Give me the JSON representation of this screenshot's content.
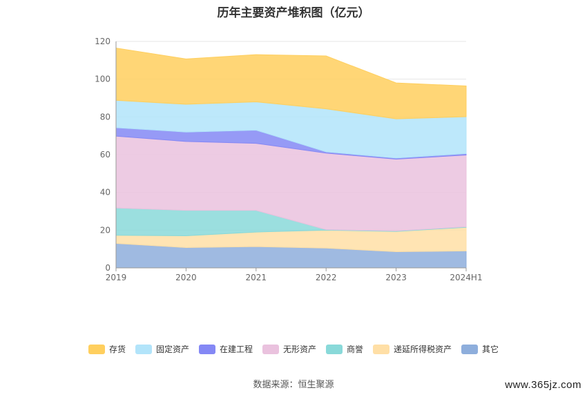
{
  "title": "历年主要资产堆积图（亿元）",
  "source": "数据来源：恒生聚源",
  "watermark": "www.365jz.com",
  "chart_data": {
    "type": "area",
    "stacked": true,
    "categories": [
      "2019",
      "2020",
      "2021",
      "2022",
      "2023",
      "2024H1"
    ],
    "ylim": [
      0,
      120
    ],
    "yticks": [
      0,
      20,
      40,
      60,
      80,
      100,
      120
    ],
    "grid": true,
    "legend_position": "bottom",
    "series": [
      {
        "name": "其它",
        "color": "#8eaedc",
        "values": [
          13.0,
          10.8,
          11.3,
          10.5,
          8.6,
          9.0
        ]
      },
      {
        "name": "递延所得税资产",
        "color": "#ffdfa6",
        "values": [
          4.3,
          6.2,
          7.7,
          9.5,
          10.7,
          12.5
        ]
      },
      {
        "name": "商誉",
        "color": "#89d9d9",
        "values": [
          14.5,
          13.5,
          11.5,
          0.3,
          0.3,
          0.3
        ]
      },
      {
        "name": "无形资产",
        "color": "#eac2de",
        "values": [
          38.0,
          36.5,
          35.5,
          40.5,
          38.0,
          38.0
        ]
      },
      {
        "name": "在建工程",
        "color": "#8488f5",
        "values": [
          4.5,
          5.0,
          7.0,
          0.7,
          0.6,
          0.8
        ]
      },
      {
        "name": "固定资产",
        "color": "#b2e4fa",
        "values": [
          14.5,
          14.7,
          15.0,
          22.8,
          20.8,
          19.5
        ]
      },
      {
        "name": "存货",
        "color": "#ffcf5e",
        "values": [
          27.7,
          24.0,
          25.0,
          28.0,
          19.0,
          16.3
        ]
      }
    ],
    "legend_order": [
      "存货",
      "固定资产",
      "在建工程",
      "无形资产",
      "商誉",
      "递延所得税资产",
      "其它"
    ]
  }
}
